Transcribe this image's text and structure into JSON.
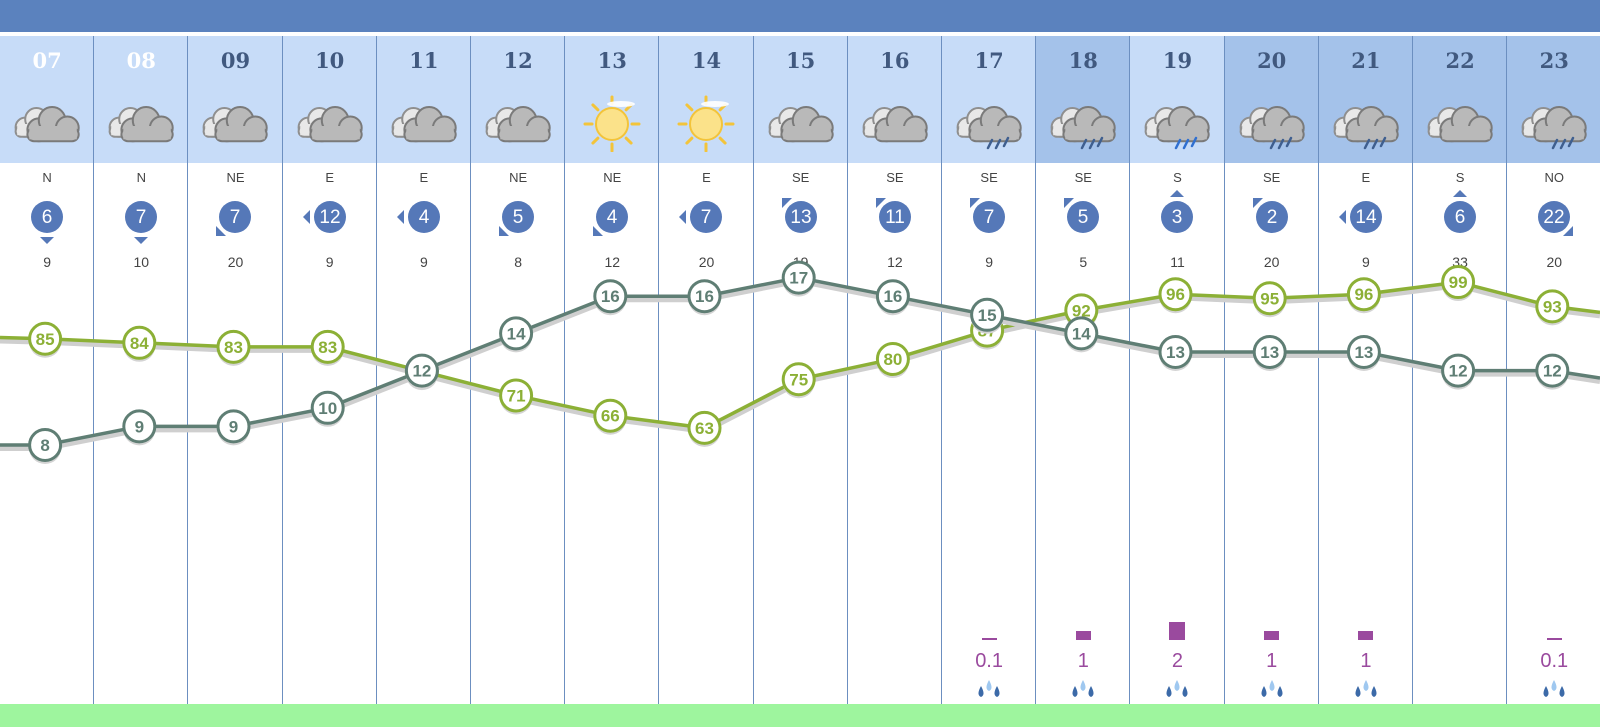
{
  "colors": {
    "topbar": "#5b82be",
    "header_light": "#c7dcf8",
    "header_dark": "#a4c2ea",
    "badge": "#5578b8",
    "temp_line": "#5f7e74",
    "humidity_line": "#8cb036",
    "precip": "#9a4a9e",
    "footer": "#9ef59e"
  },
  "hours": [
    {
      "hour": "07",
      "sky": "cloudy",
      "wind_dir": "N",
      "wind_speed": "6",
      "arrow": "down",
      "gust": "9",
      "temp": "8",
      "humidity": "85",
      "precip": ""
    },
    {
      "hour": "08",
      "sky": "cloudy",
      "wind_dir": "N",
      "wind_speed": "7",
      "arrow": "down",
      "gust": "10",
      "temp": "9",
      "humidity": "84",
      "precip": ""
    },
    {
      "hour": "09",
      "sky": "cloudy",
      "wind_dir": "NE",
      "wind_speed": "7",
      "arrow": "bottom-left",
      "gust": "20",
      "temp": "9",
      "humidity": "83",
      "precip": ""
    },
    {
      "hour": "10",
      "sky": "cloudy",
      "wind_dir": "E",
      "wind_speed": "12",
      "arrow": "left",
      "gust": "9",
      "temp": "10",
      "humidity": "83",
      "precip": ""
    },
    {
      "hour": "11",
      "sky": "cloudy",
      "wind_dir": "E",
      "wind_speed": "4",
      "arrow": "left",
      "gust": "9",
      "temp": "12",
      "humidity": "77",
      "precip": ""
    },
    {
      "hour": "12",
      "sky": "cloudy",
      "wind_dir": "NE",
      "wind_speed": "5",
      "arrow": "bottom-left",
      "gust": "8",
      "temp": "14",
      "humidity": "71",
      "precip": ""
    },
    {
      "hour": "13",
      "sky": "sunny",
      "wind_dir": "NE",
      "wind_speed": "4",
      "arrow": "bottom-left",
      "gust": "12",
      "temp": "16",
      "humidity": "66",
      "precip": ""
    },
    {
      "hour": "14",
      "sky": "sunny",
      "wind_dir": "E",
      "wind_speed": "7",
      "arrow": "left",
      "gust": "20",
      "temp": "16",
      "humidity": "63",
      "precip": ""
    },
    {
      "hour": "15",
      "sky": "cloudy",
      "wind_dir": "SE",
      "wind_speed": "13",
      "arrow": "top-left",
      "gust": "19",
      "temp": "17",
      "humidity": "75",
      "precip": ""
    },
    {
      "hour": "16",
      "sky": "cloudy",
      "wind_dir": "SE",
      "wind_speed": "11",
      "arrow": "top-left",
      "gust": "12",
      "temp": "16",
      "humidity": "80",
      "precip": ""
    },
    {
      "hour": "17",
      "sky": "rain",
      "wind_dir": "SE",
      "wind_speed": "7",
      "arrow": "top-left",
      "gust": "9",
      "temp": "15",
      "humidity": "87",
      "precip": "0.1"
    },
    {
      "hour": "18",
      "sky": "rain",
      "wind_dir": "SE",
      "wind_speed": "5",
      "arrow": "top-left",
      "gust": "5",
      "temp": "14",
      "humidity": "92",
      "precip": "1"
    },
    {
      "hour": "19",
      "sky": "heavy-rain",
      "wind_dir": "S",
      "wind_speed": "3",
      "arrow": "up",
      "gust": "11",
      "temp": "13",
      "humidity": "96",
      "precip": "2"
    },
    {
      "hour": "20",
      "sky": "rain",
      "wind_dir": "SE",
      "wind_speed": "2",
      "arrow": "top-left",
      "gust": "20",
      "temp": "13",
      "humidity": "95",
      "precip": "1"
    },
    {
      "hour": "21",
      "sky": "rain",
      "wind_dir": "E",
      "wind_speed": "14",
      "arrow": "left",
      "gust": "9",
      "temp": "13",
      "humidity": "96",
      "precip": "1"
    },
    {
      "hour": "22",
      "sky": "cloudy",
      "wind_dir": "S",
      "wind_speed": "6",
      "arrow": "up",
      "gust": "33",
      "temp": "12",
      "humidity": "99",
      "precip": ""
    },
    {
      "hour": "23",
      "sky": "rain",
      "wind_dir": "NO",
      "wind_speed": "22",
      "arrow": "bottom-right",
      "gust": "20",
      "temp": "12",
      "humidity": "93",
      "precip": "0.1"
    }
  ]
}
